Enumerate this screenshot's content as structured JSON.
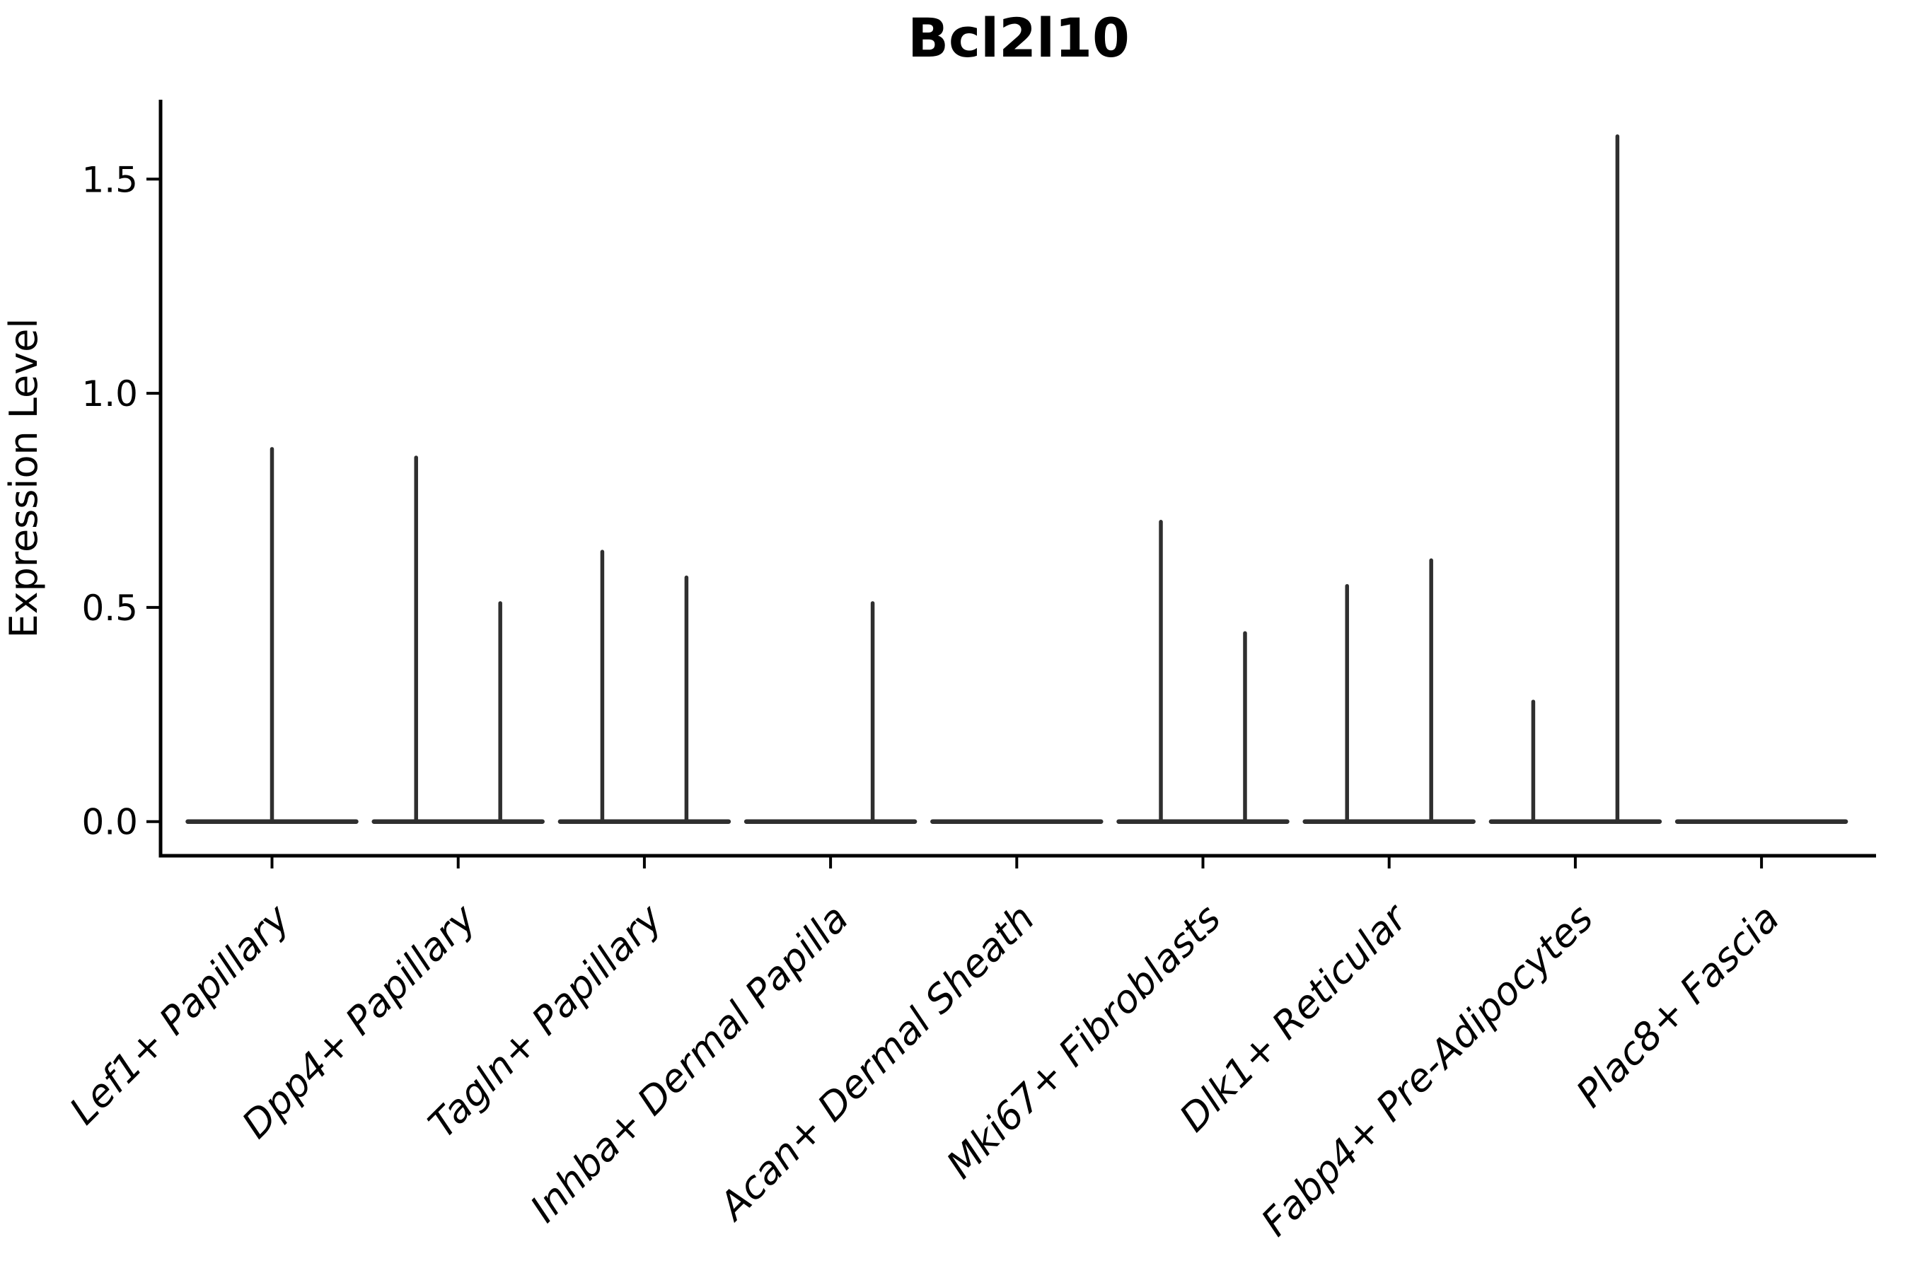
{
  "figure": {
    "title": "Bcl2l10",
    "colors": {
      "background": "#ffffff",
      "axis": "#000000",
      "text": "#000000",
      "violin": "#2f2f2f"
    }
  },
  "chart_data": {
    "type": "violin",
    "title": "Bcl2l10",
    "xlabel": "",
    "ylabel": "Expression Level",
    "ylim": [
      -0.08,
      1.69
    ],
    "grid": false,
    "legend": "none",
    "yticks": [
      {
        "label": "0.0",
        "value": 0.0
      },
      {
        "label": "0.5",
        "value": 0.5
      },
      {
        "label": "1.0",
        "value": 1.0
      },
      {
        "label": "1.5",
        "value": 1.5
      }
    ],
    "categories": [
      "Lef1+ Papillary",
      "Dpp4+ Papillary",
      "Tagln+ Papillary",
      "Inhba+ Dermal Papilla",
      "Acan+ Dermal Sheath",
      "Mki67+ Fibroblasts",
      "Dlk1+ Reticular",
      "Fabp4+ Pre-Adipocytes",
      "Plac8+ Fascia"
    ],
    "violin_width": 0.904,
    "description": "Each category shows a flat violin at expression 0 with thin vertical spikes up to the maximum expression of rare expressing cells; offset is the spike position as a fraction of the category slot width.",
    "violins": [
      {
        "category": "Lef1+ Papillary",
        "baseline": 0.0,
        "spikes": [
          {
            "offset": 0.0,
            "max": 0.87
          }
        ]
      },
      {
        "category": "Dpp4+ Papillary",
        "baseline": 0.0,
        "spikes": [
          {
            "offset": -0.226,
            "max": 0.85
          },
          {
            "offset": 0.226,
            "max": 0.51
          }
        ]
      },
      {
        "category": "Tagln+ Papillary",
        "baseline": 0.0,
        "spikes": [
          {
            "offset": -0.226,
            "max": 0.63
          },
          {
            "offset": 0.226,
            "max": 0.57
          }
        ]
      },
      {
        "category": "Inhba+ Dermal Papilla",
        "baseline": 0.0,
        "spikes": [
          {
            "offset": 0.226,
            "max": 0.51
          }
        ]
      },
      {
        "category": "Acan+ Dermal Sheath",
        "baseline": 0.0,
        "spikes": []
      },
      {
        "category": "Mki67+ Fibroblasts",
        "baseline": 0.0,
        "spikes": [
          {
            "offset": -0.226,
            "max": 0.7
          },
          {
            "offset": 0.226,
            "max": 0.44
          }
        ]
      },
      {
        "category": "Dlk1+ Reticular",
        "baseline": 0.0,
        "spikes": [
          {
            "offset": -0.226,
            "max": 0.55
          },
          {
            "offset": 0.226,
            "max": 0.61
          }
        ]
      },
      {
        "category": "Fabp4+ Pre-Adipocytes",
        "baseline": 0.0,
        "spikes": [
          {
            "offset": -0.226,
            "max": 0.28
          },
          {
            "offset": 0.226,
            "max": 1.6
          }
        ]
      },
      {
        "category": "Plac8+ Fascia",
        "baseline": 0.0,
        "spikes": []
      }
    ]
  }
}
